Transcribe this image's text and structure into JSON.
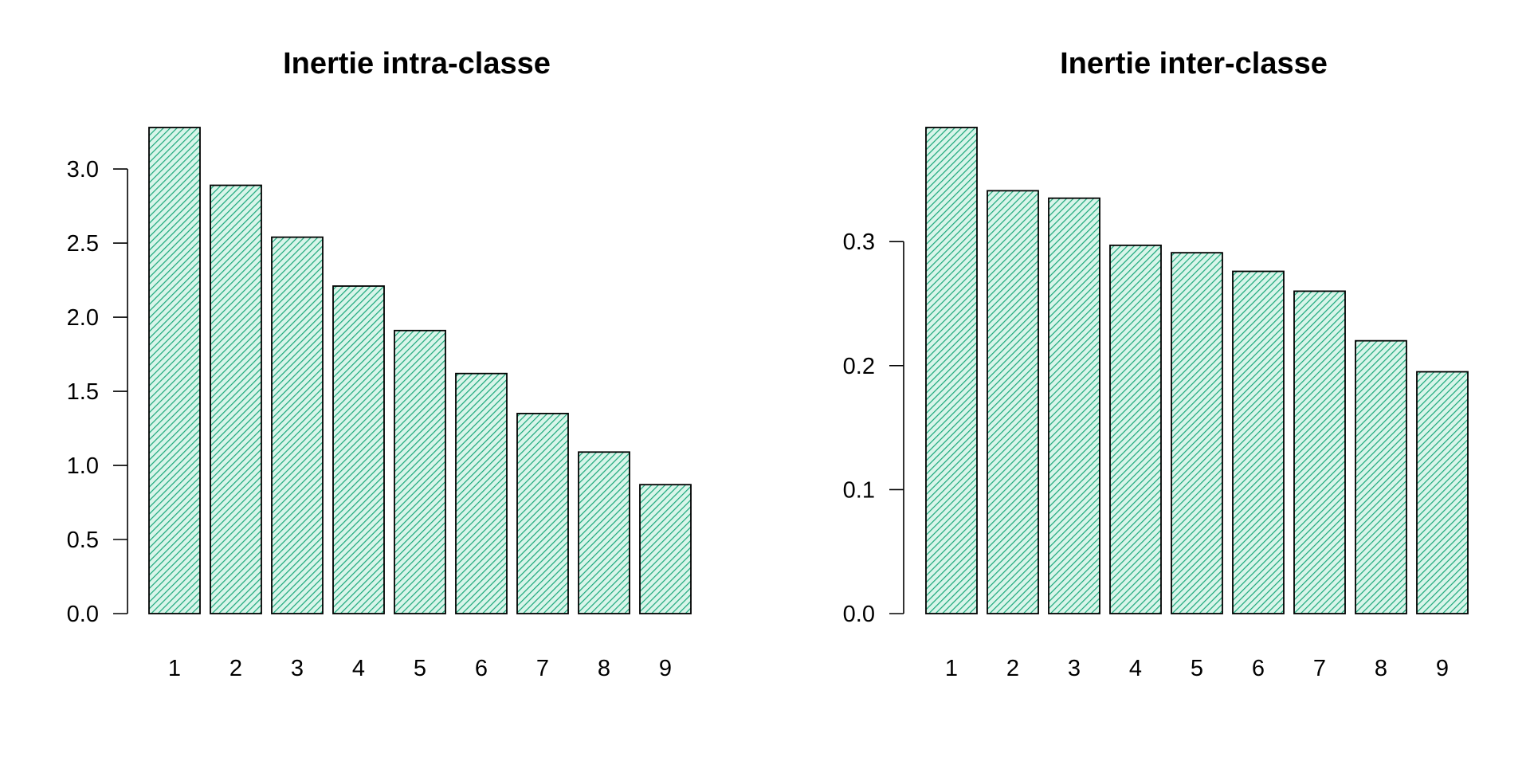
{
  "chart_data": [
    {
      "type": "bar",
      "title": "Inertie intra-classe",
      "xlabel": "",
      "ylabel": "",
      "categories": [
        "1",
        "2",
        "3",
        "4",
        "5",
        "6",
        "7",
        "8",
        "9"
      ],
      "values": [
        3.28,
        2.89,
        2.54,
        2.21,
        1.91,
        1.62,
        1.35,
        1.09,
        0.87
      ],
      "yticks": [
        "0.0",
        "0.5",
        "1.0",
        "1.5",
        "2.0",
        "2.5",
        "3.0"
      ],
      "ylim": [
        0,
        3.28
      ],
      "grid": false,
      "legend": false,
      "fill": "hatched diagonal lines",
      "colors": {
        "hatch": "#1aa77a",
        "background": "#d9f5ea",
        "outline": "#000000"
      }
    },
    {
      "type": "bar",
      "title": "Inertie inter-classe",
      "xlabel": "",
      "ylabel": "",
      "categories": [
        "1",
        "2",
        "3",
        "4",
        "5",
        "6",
        "7",
        "8",
        "9"
      ],
      "values": [
        0.392,
        0.341,
        0.335,
        0.297,
        0.291,
        0.276,
        0.26,
        0.22,
        0.195
      ],
      "yticks": [
        "0.0",
        "0.1",
        "0.2",
        "0.3"
      ],
      "ylim": [
        0,
        0.392
      ],
      "grid": false,
      "legend": false,
      "fill": "hatched diagonal lines",
      "colors": {
        "hatch": "#1aa77a",
        "background": "#d9f5ea",
        "outline": "#000000"
      }
    }
  ]
}
